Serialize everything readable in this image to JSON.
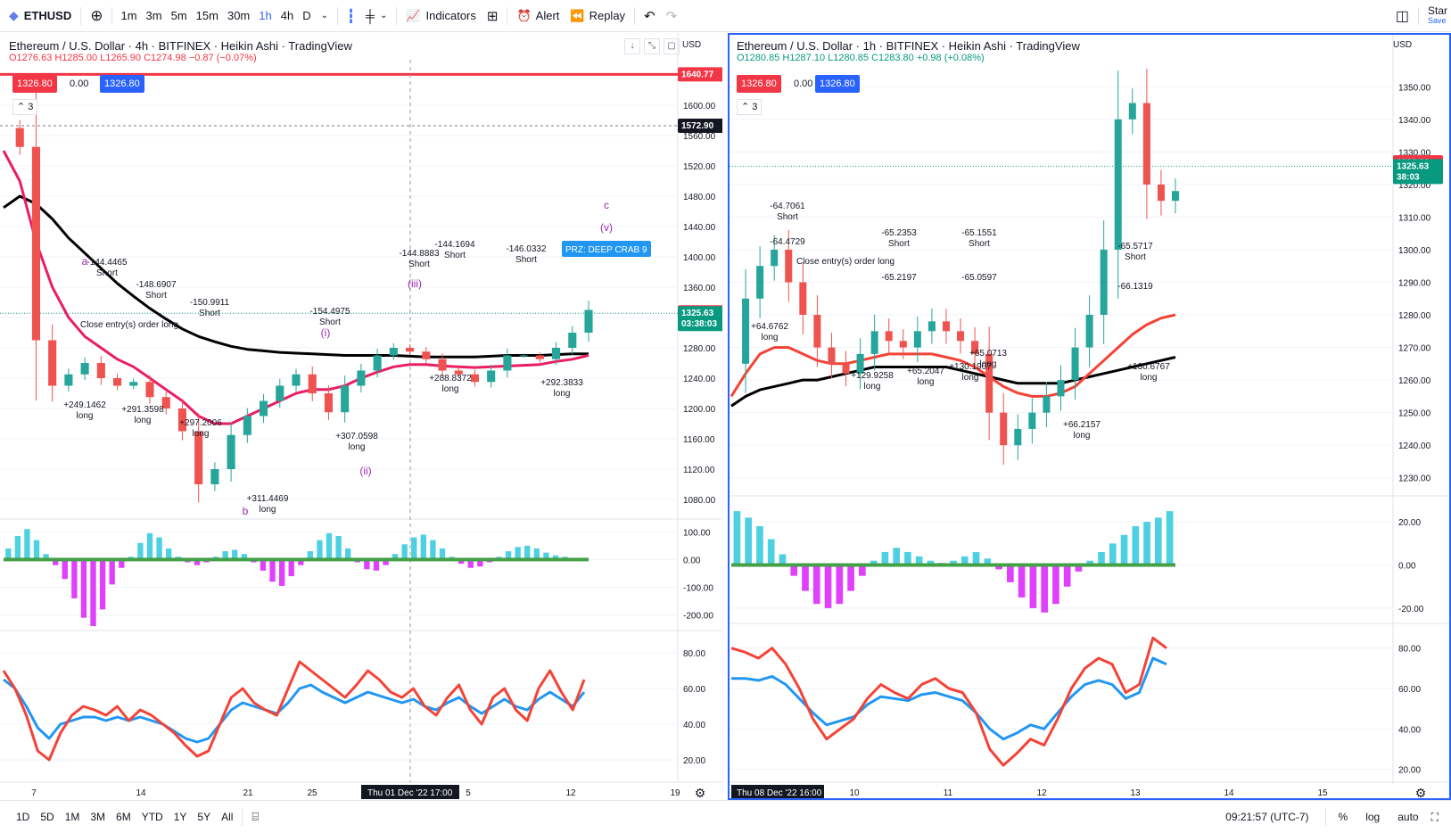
{
  "toolbar": {
    "symbol": "ETHUSD",
    "timeframes": [
      "1m",
      "3m",
      "5m",
      "15m",
      "30m",
      "1h",
      "4h",
      "D"
    ],
    "active_timeframe": "1h",
    "indicators_label": "Indicators",
    "alert_label": "Alert",
    "replay_label": "Replay",
    "star_label": "Star",
    "save_label": "Save"
  },
  "bottom": {
    "ranges": [
      "1D",
      "5D",
      "1M",
      "3M",
      "6M",
      "YTD",
      "1Y",
      "5Y",
      "All"
    ],
    "time": "09:21:57 (UTC-7)",
    "percent": "%",
    "log": "log",
    "auto": "auto"
  },
  "left": {
    "title": "Ethereum / U.S. Dollar · 4h · BITFINEX · Heikin Ashi · TradingView",
    "ohlc": "O1276.63 H1285.00 L1265.90 C1274.98 −0.87 (−0.07%)",
    "bid": "1326.80",
    "spread": "0.00",
    "ask": "1326.80",
    "collapse": "3",
    "currency": "USD",
    "crosshair_time": "Thu 01 Dec '22   17:00"
  },
  "right": {
    "title": "Ethereum / U.S. Dollar · 1h · BITFINEX · Heikin Ashi · TradingView",
    "ohlc": "O1280.85 H1287.10 L1280.85 C1283.80 +0.98 (+0.08%)",
    "bid": "1326.80",
    "spread": "0.00",
    "ask": "1326.80",
    "collapse": "3",
    "currency": "USD",
    "crosshair_time": "Thu 08 Dec '22   16:00"
  },
  "colors": {
    "up": "#26a69a",
    "down": "#ef5350",
    "sell_red": "#f23645",
    "buy_blue": "#2962ff",
    "ma_black": "#000000",
    "ma_red": "#e91e63",
    "histo_cyan": "#4dd0e1",
    "histo_magenta": "#e040fb"
  },
  "chart_data": [
    {
      "type": "line",
      "pane": "left-price",
      "title": "Ethereum / U.S. Dollar · 4h · BITFINEX · Heikin Ashi",
      "y_ticks": [
        "1080.00",
        "1120.00",
        "1160.00",
        "1200.00",
        "1240.00",
        "1280.00",
        "1320.00",
        "1360.00",
        "1400.00",
        "1440.00",
        "1480.00",
        "1520.00",
        "1560.00",
        "1600.00"
      ],
      "ylim": [
        1060,
        1660
      ],
      "x_ticks": [
        "7",
        "14",
        "21",
        "25",
        "5",
        "12",
        "19"
      ],
      "price_labels": [
        {
          "value": 1640.77,
          "text": "1640.77",
          "color": "#f23645"
        },
        {
          "value": 1572.9,
          "text": "1572.90",
          "color": "#131722"
        },
        {
          "value": 1326.8,
          "text": "1326.80",
          "color": "#f23645"
        },
        {
          "value": 1325.63,
          "text": "1325.63\n03:38:03",
          "color": "#089981"
        }
      ],
      "series": [
        {
          "name": "price",
          "values": [
            1570,
            1545,
            1290,
            1230,
            1245,
            1260,
            1240,
            1230,
            1235,
            1215,
            1200,
            1170,
            1100,
            1120,
            1165,
            1190,
            1210,
            1230,
            1245,
            1220,
            1195,
            1230,
            1250,
            1270,
            1280,
            1275,
            1265,
            1250,
            1245,
            1235,
            1250,
            1270,
            1270,
            1265,
            1280,
            1300,
            1330
          ]
        },
        {
          "name": "ma_black",
          "values": [
            1465,
            1480,
            1470,
            1450,
            1425,
            1405,
            1385,
            1365,
            1348,
            1332,
            1318,
            1305,
            1295,
            1288,
            1282,
            1278,
            1276,
            1274,
            1273,
            1272,
            1271,
            1270,
            1270,
            1270,
            1270,
            1269,
            1268,
            1268,
            1268,
            1268,
            1269,
            1270,
            1270,
            1270,
            1271,
            1272,
            1272
          ]
        },
        {
          "name": "ma_red",
          "values": [
            1540,
            1500,
            1420,
            1360,
            1320,
            1295,
            1280,
            1265,
            1255,
            1240,
            1225,
            1210,
            1190,
            1180,
            1180,
            1190,
            1200,
            1210,
            1220,
            1225,
            1225,
            1230,
            1240,
            1248,
            1255,
            1258,
            1258,
            1256,
            1255,
            1254,
            1255,
            1256,
            1257,
            1258,
            1262,
            1265,
            1270
          ]
        }
      ],
      "annotations": [
        {
          "text": "-144.4465",
          "sub": "Short"
        },
        {
          "text": "-148.6907",
          "sub": "Short"
        },
        {
          "text": "-150.9911",
          "sub": "Short"
        },
        {
          "text": "-154.4975",
          "sub": "Short"
        },
        {
          "text": "-144.8883",
          "sub": "Short"
        },
        {
          "text": "-144.1694",
          "sub": "Short"
        },
        {
          "text": "-146.0332",
          "sub": "Short"
        },
        {
          "text": "+249.1462",
          "sub": "long"
        },
        {
          "text": "+291.3598",
          "sub": "long"
        },
        {
          "text": "+297.2006",
          "sub": "long"
        },
        {
          "text": "+307.0598",
          "sub": "long"
        },
        {
          "text": "+311.4469",
          "sub": "long"
        },
        {
          "text": "+288.8372",
          "sub": "long"
        },
        {
          "text": "+292.3833",
          "sub": "long"
        },
        {
          "text": "Close entry(s) order long"
        },
        {
          "text": "PRZ: DEEP CRAB 9"
        }
      ],
      "wave_labels": [
        "a",
        "b",
        "c",
        "(i)",
        "(ii)",
        "(iii)",
        "(v)"
      ]
    },
    {
      "type": "bar",
      "pane": "left-macd",
      "y_ticks": [
        "100.00",
        "0.00",
        "-100.00",
        "-200.00"
      ],
      "ylim": [
        -240,
        130
      ],
      "values": [
        40,
        85,
        110,
        70,
        20,
        -20,
        -70,
        -140,
        -210,
        -240,
        -180,
        -90,
        -30,
        10,
        60,
        95,
        80,
        40,
        10,
        -10,
        -20,
        -10,
        10,
        30,
        35,
        20,
        -10,
        -40,
        -80,
        -95,
        -60,
        -20,
        30,
        70,
        95,
        85,
        40,
        -10,
        -35,
        -40,
        -20,
        20,
        55,
        80,
        90,
        70,
        40,
        10,
        -15,
        -30,
        -25,
        -10,
        10,
        30,
        45,
        50,
        40,
        25,
        15,
        10,
        5,
        0
      ]
    },
    {
      "type": "line",
      "pane": "left-rsi",
      "y_ticks": [
        "80.00",
        "60.00",
        "40.00",
        "20.00"
      ],
      "ylim": [
        10,
        90
      ],
      "series": [
        {
          "name": "rsi_red",
          "values": [
            70,
            60,
            45,
            25,
            20,
            35,
            45,
            50,
            48,
            45,
            50,
            42,
            48,
            45,
            40,
            35,
            28,
            22,
            25,
            40,
            55,
            60,
            52,
            48,
            45,
            60,
            75,
            70,
            65,
            60,
            55,
            62,
            70,
            65,
            58,
            55,
            60,
            50,
            45,
            55,
            62,
            48,
            40,
            55,
            60,
            48,
            42,
            60,
            70,
            58,
            48,
            65
          ]
        },
        {
          "name": "rsi_blue",
          "values": [
            65,
            60,
            50,
            38,
            32,
            40,
            42,
            44,
            44,
            42,
            44,
            42,
            44,
            42,
            40,
            36,
            32,
            30,
            32,
            40,
            48,
            52,
            50,
            48,
            46,
            52,
            60,
            62,
            58,
            55,
            52,
            55,
            58,
            56,
            54,
            52,
            54,
            50,
            48,
            52,
            55,
            50,
            46,
            50,
            54,
            50,
            48,
            54,
            58,
            54,
            50,
            58
          ]
        }
      ]
    },
    {
      "type": "line",
      "pane": "right-price",
      "title": "Ethereum / U.S. Dollar · 1h · BITFINEX · Heikin Ashi",
      "y_ticks": [
        "1230.00",
        "1240.00",
        "1250.00",
        "1260.00",
        "1270.00",
        "1280.00",
        "1290.00",
        "1300.00",
        "1310.00",
        "1320.00",
        "1330.00",
        "1340.00",
        "1350.00"
      ],
      "ylim": [
        1225,
        1355
      ],
      "x_ticks": [
        "10",
        "11",
        "12",
        "13",
        "14",
        "15"
      ],
      "price_labels": [
        {
          "value": 1326.8,
          "text": "1326.80",
          "color": "#f23645"
        },
        {
          "value": 1325.63,
          "text": "1325.63\n38:03",
          "color": "#089981"
        }
      ],
      "series": [
        {
          "name": "price",
          "values": [
            1265,
            1285,
            1295,
            1300,
            1290,
            1280,
            1270,
            1265,
            1262,
            1268,
            1275,
            1272,
            1270,
            1275,
            1278,
            1275,
            1272,
            1268,
            1250,
            1240,
            1245,
            1250,
            1255,
            1260,
            1270,
            1280,
            1300,
            1340,
            1345,
            1320,
            1315,
            1318
          ]
        },
        {
          "name": "ma_black",
          "values": [
            1252,
            1255,
            1257,
            1258,
            1259,
            1260,
            1260,
            1261,
            1262,
            1263,
            1264,
            1264,
            1264,
            1264,
            1264,
            1264,
            1263,
            1262,
            1261,
            1260,
            1259,
            1259,
            1259,
            1259,
            1260,
            1261,
            1262,
            1263,
            1264,
            1265,
            1266,
            1267
          ]
        },
        {
          "name": "ma_red",
          "values": [
            1255,
            1262,
            1268,
            1270,
            1270,
            1268,
            1266,
            1265,
            1265,
            1266,
            1267,
            1268,
            1268,
            1268,
            1268,
            1267,
            1266,
            1264,
            1261,
            1258,
            1256,
            1255,
            1255,
            1256,
            1258,
            1262,
            1266,
            1270,
            1274,
            1277,
            1279,
            1280
          ]
        }
      ],
      "annotations": [
        {
          "text": "-64.7061",
          "sub": "Short"
        },
        {
          "text": "-64.4729"
        },
        {
          "text": "-65.2353",
          "sub": "Short"
        },
        {
          "text": "-65.2197"
        },
        {
          "text": "-65.1551",
          "sub": "Short"
        },
        {
          "text": "-65.0597"
        },
        {
          "text": "-65.5717",
          "sub": "Short"
        },
        {
          "text": "-66.1319"
        },
        {
          "text": "+64.6762",
          "sub": "long"
        },
        {
          "text": "+129.9258",
          "sub": "long"
        },
        {
          "text": "+65.2047",
          "sub": "long"
        },
        {
          "text": "+130.1907",
          "sub": "long"
        },
        {
          "text": "+65.0713",
          "sub": "long"
        },
        {
          "text": "+66.2157",
          "sub": "long"
        },
        {
          "text": "+130.6767",
          "sub": "long"
        },
        {
          "text": "Close entry(s) order long"
        }
      ]
    },
    {
      "type": "bar",
      "pane": "right-macd",
      "y_ticks": [
        "20.00",
        "0.00",
        "-20.00"
      ],
      "ylim": [
        -25,
        30
      ],
      "values": [
        25,
        22,
        18,
        12,
        5,
        -5,
        -12,
        -18,
        -20,
        -18,
        -12,
        -5,
        2,
        6,
        8,
        6,
        4,
        2,
        1,
        2,
        4,
        6,
        3,
        -2,
        -8,
        -15,
        -20,
        -22,
        -18,
        -10,
        -3,
        2,
        6,
        10,
        14,
        18,
        20,
        22,
        25
      ]
    },
    {
      "type": "line",
      "pane": "right-rsi",
      "y_ticks": [
        "80.00",
        "60.00",
        "40.00",
        "20.00"
      ],
      "ylim": [
        15,
        90
      ],
      "series": [
        {
          "name": "rsi_red",
          "values": [
            80,
            78,
            75,
            80,
            72,
            60,
            45,
            35,
            40,
            45,
            55,
            62,
            58,
            55,
            62,
            65,
            60,
            58,
            48,
            30,
            22,
            28,
            35,
            32,
            45,
            60,
            70,
            75,
            72,
            58,
            62,
            85,
            80
          ]
        },
        {
          "name": "rsi_blue",
          "values": [
            65,
            65,
            64,
            66,
            62,
            55,
            48,
            42,
            44,
            46,
            52,
            56,
            55,
            54,
            57,
            58,
            56,
            54,
            48,
            40,
            35,
            38,
            42,
            40,
            48,
            56,
            62,
            64,
            62,
            55,
            58,
            75,
            72
          ]
        }
      ]
    }
  ]
}
